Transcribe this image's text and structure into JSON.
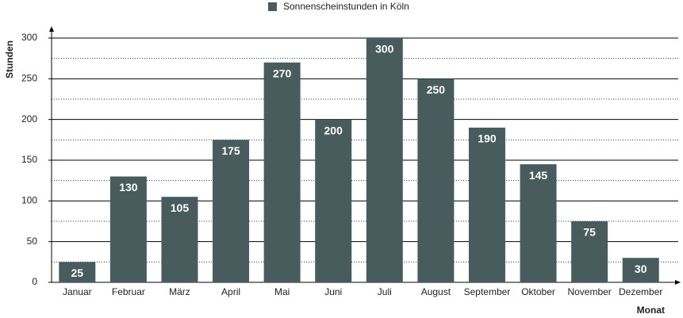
{
  "chart_data": {
    "type": "bar",
    "series": [
      {
        "name": "Sonnenscheinstunden in Köln",
        "color": "#485c5e",
        "values": [
          25,
          130,
          105,
          175,
          270,
          200,
          300,
          250,
          190,
          145,
          75,
          30
        ]
      }
    ],
    "categories": [
      "Januar",
      "Februar",
      "März",
      "April",
      "Mai",
      "Juni",
      "Juli",
      "August",
      "September",
      "Oktober",
      "November",
      "Dezember"
    ],
    "x_label": "Monat",
    "y_label": "Stunden",
    "ylim": [
      0,
      300
    ],
    "yticks": [
      0,
      50,
      100,
      150,
      200,
      250,
      300
    ],
    "minor_yticks": [
      25,
      75,
      125,
      175,
      225,
      275
    ],
    "grid": true,
    "legend": "top"
  }
}
